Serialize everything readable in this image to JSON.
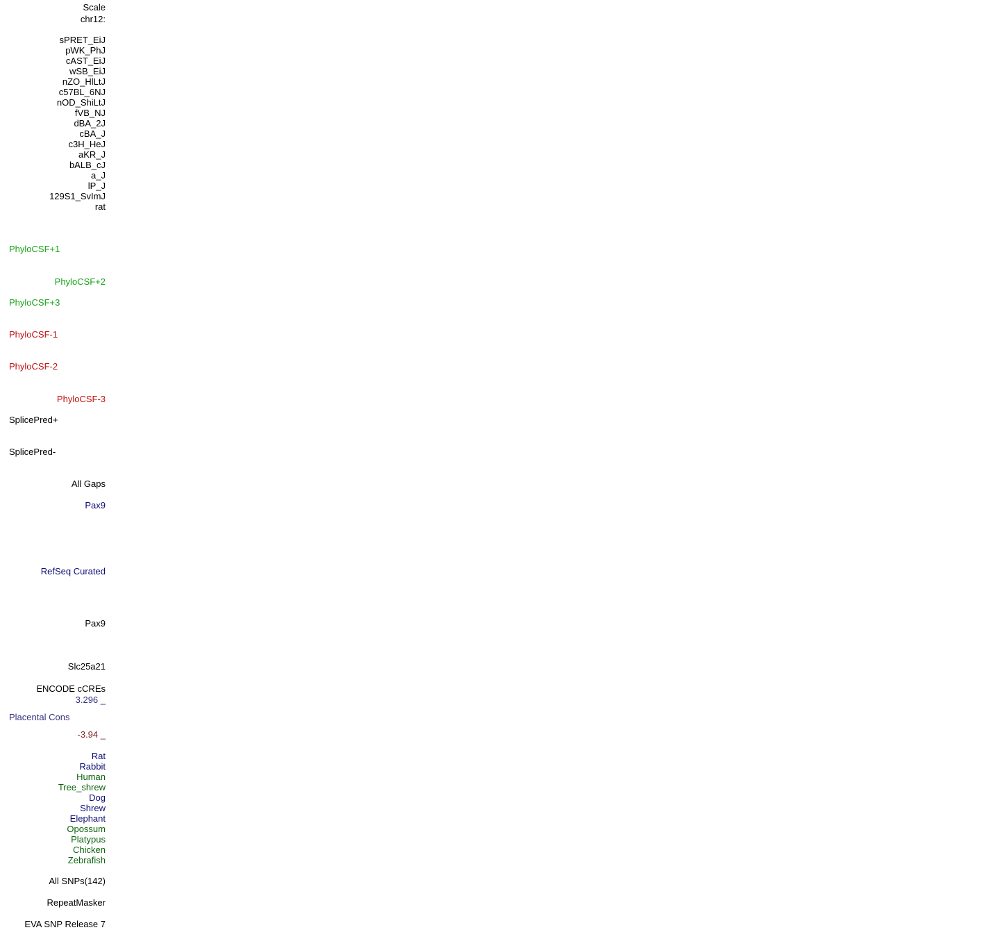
{
  "labels": [
    {
      "text": "Scale",
      "color": "#000000"
    },
    {
      "text": "chr12:",
      "color": "#000000"
    },
    {
      "text": "sPRET_EiJ",
      "color": "#000000"
    },
    {
      "text": "pWK_PhJ",
      "color": "#000000"
    },
    {
      "text": "cAST_EiJ",
      "color": "#000000"
    },
    {
      "text": "wSB_EiJ",
      "color": "#000000"
    },
    {
      "text": "nZO_HlLtJ",
      "color": "#000000"
    },
    {
      "text": "c57BL_6NJ",
      "color": "#000000"
    },
    {
      "text": "nOD_ShiLtJ",
      "color": "#000000"
    },
    {
      "text": "fVB_NJ",
      "color": "#000000"
    },
    {
      "text": "dBA_2J",
      "color": "#000000"
    },
    {
      "text": "cBA_J",
      "color": "#000000"
    },
    {
      "text": "c3H_HeJ",
      "color": "#000000"
    },
    {
      "text": "aKR_J",
      "color": "#000000"
    },
    {
      "text": "bALB_cJ",
      "color": "#000000"
    },
    {
      "text": "a_J",
      "color": "#000000"
    },
    {
      "text": "lP_J",
      "color": "#000000"
    },
    {
      "text": "129S1_SvImJ",
      "color": "#000000"
    },
    {
      "text": "rat",
      "color": "#000000"
    },
    {
      "text": "PhyloCSF+1",
      "color": "#1aa31a"
    },
    {
      "text": "PhyloCSF+2",
      "color": "#1aa31a"
    },
    {
      "text": "PhyloCSF+3",
      "color": "#1aa31a"
    },
    {
      "text": "PhyloCSF-1",
      "color": "#c01010"
    },
    {
      "text": "PhyloCSF-2",
      "color": "#c01010"
    },
    {
      "text": "PhyloCSF-3",
      "color": "#c01010"
    },
    {
      "text": "SplicePred+",
      "color": "#000000"
    },
    {
      "text": "SplicePred-",
      "color": "#000000"
    },
    {
      "text": "All Gaps",
      "color": "#000000"
    },
    {
      "text": "Pax9",
      "color": "#0c0c78"
    },
    {
      "text": "RefSeq Curated",
      "color": "#0c0c78"
    },
    {
      "text": "Pax9",
      "color": "#000000"
    },
    {
      "text": "Slc25a21",
      "color": "#000000"
    },
    {
      "text": "ENCODE cCREs",
      "color": "#000000"
    },
    {
      "text": "3.296 _",
      "color": "#33337f"
    },
    {
      "text": "Placental Cons",
      "color": "#33337f"
    },
    {
      "text": "-3.94 _",
      "color": "#7f2626"
    },
    {
      "text": "Rat",
      "color": "#0c0c78"
    },
    {
      "text": "Rabbit",
      "color": "#0c0c78"
    },
    {
      "text": "Human",
      "color": "#0c640c"
    },
    {
      "text": "Tree_shrew",
      "color": "#0c640c"
    },
    {
      "text": "Dog",
      "color": "#0c0c78"
    },
    {
      "text": "Shrew",
      "color": "#0c0c78"
    },
    {
      "text": "Elephant",
      "color": "#0c0c78"
    },
    {
      "text": "Opossum",
      "color": "#0c640c"
    },
    {
      "text": "Platypus",
      "color": "#0c640c"
    },
    {
      "text": "Chicken",
      "color": "#0c640c"
    },
    {
      "text": "Zebrafish",
      "color": "#0c640c"
    },
    {
      "text": "All SNPs(142)",
      "color": "#000000"
    },
    {
      "text": "RepeatMasker",
      "color": "#000000"
    },
    {
      "text": "EVA SNP Release 7",
      "color": "#000000"
    }
  ]
}
